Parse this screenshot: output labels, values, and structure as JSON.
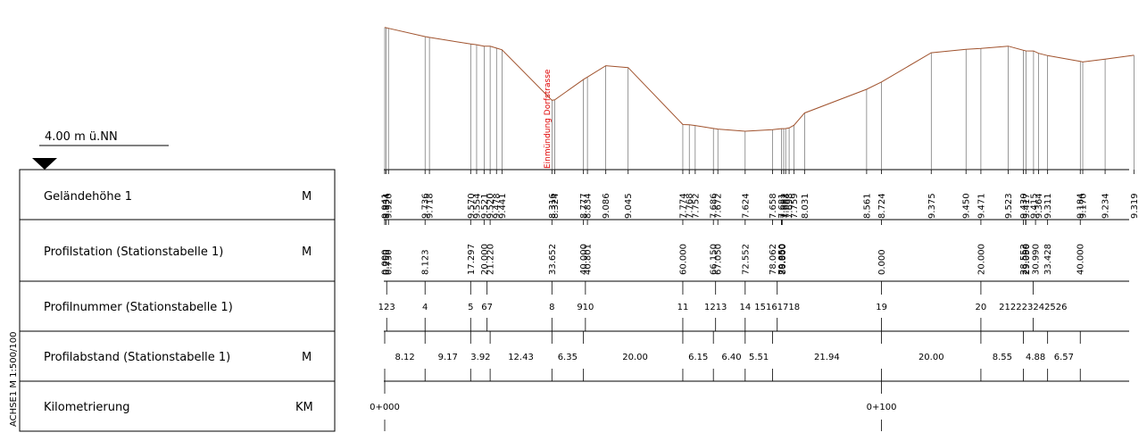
{
  "datum": "4.00 m ü.NN",
  "side_label": "ACHSE1  M 1:500/100",
  "rows": [
    {
      "label": "Geländehöhe 1",
      "unit": "M"
    },
    {
      "label": "Profilstation (Stationstabelle 1)",
      "unit": "M"
    },
    {
      "label": "Profilnummer (Stationstabelle 1)",
      "unit": ""
    },
    {
      "label": "Profilabstand (Stationstabelle 1)",
      "unit": "M"
    },
    {
      "label": "Kilometrierung",
      "unit": "KM"
    }
  ],
  "annotation": "Einmündung Dorfstrasse",
  "terrain": [
    {
      "x": 0.0,
      "h": 9.941
    },
    {
      "x": 0.25,
      "h": 9.934
    },
    {
      "x": 0.75,
      "h": 9.92
    },
    {
      "x": 8.123,
      "h": 9.736
    },
    {
      "x": 9.0,
      "h": 9.718
    },
    {
      "x": 17.297,
      "h": 9.57
    },
    {
      "x": 18.5,
      "h": 9.554
    },
    {
      "x": 20.0,
      "h": 9.521
    },
    {
      "x": 21.22,
      "h": 9.52
    },
    {
      "x": 22.5,
      "h": 9.478
    },
    {
      "x": 23.6,
      "h": 9.441
    },
    {
      "x": 33.652,
      "h": 8.316
    },
    {
      "x": 34.2,
      "h": 8.324
    },
    {
      "x": 40.0,
      "h": 8.777
    },
    {
      "x": 40.801,
      "h": 8.834
    },
    {
      "x": 44.5,
      "h": 9.086
    },
    {
      "x": 49.0,
      "h": 9.045
    },
    {
      "x": 60.0,
      "h": 7.774
    },
    {
      "x": 61.3,
      "h": 7.768
    },
    {
      "x": 62.5,
      "h": 7.752
    },
    {
      "x": 66.15,
      "h": 7.686
    },
    {
      "x": 67.05,
      "h": 7.672
    },
    {
      "x": 72.552,
      "h": 7.624
    },
    {
      "x": 78.062,
      "h": 7.658
    },
    {
      "x": 79.85,
      "h": 7.681
    },
    {
      "x": 80.3,
      "h": 7.682
    },
    {
      "x": 80.7,
      "h": 7.683
    },
    {
      "x": 81.4,
      "h": 7.698
    },
    {
      "x": 82.4,
      "h": 7.759
    },
    {
      "x": 84.5,
      "h": 8.031
    },
    {
      "x": 97.0,
      "h": 8.561
    },
    {
      "x": 100.0,
      "h": 8.724
    },
    {
      "x": 110.0,
      "h": 9.375
    },
    {
      "x": 117.0,
      "h": 9.45
    },
    {
      "x": 120.0,
      "h": 9.471
    },
    {
      "x": 125.5,
      "h": 9.523
    },
    {
      "x": 128.552,
      "h": 9.43
    },
    {
      "x": 129.05,
      "h": 9.417
    },
    {
      "x": 130.6,
      "h": 9.415
    },
    {
      "x": 131.6,
      "h": 9.364
    },
    {
      "x": 133.428,
      "h": 9.311
    },
    {
      "x": 140.0,
      "h": 9.184
    },
    {
      "x": 140.5,
      "h": 9.17
    },
    {
      "x": 145.0,
      "h": 9.234
    },
    {
      "x": 150.8,
      "h": 9.319
    }
  ],
  "stations": [
    {
      "x": 0.0,
      "label": "0.000"
    },
    {
      "x": 0.25,
      "label": "0.250"
    },
    {
      "x": 0.75,
      "label": "0.750"
    },
    {
      "x": 8.123,
      "label": "8.123"
    },
    {
      "x": 17.297,
      "label": "17.297"
    },
    {
      "x": 20.0,
      "label": "20.000"
    },
    {
      "x": 21.22,
      "label": "21.220"
    },
    {
      "x": 33.652,
      "label": "33.652"
    },
    {
      "x": 40.0,
      "label": "40.000"
    },
    {
      "x": 40.801,
      "label": "40.801"
    },
    {
      "x": 60.0,
      "label": "60.000"
    },
    {
      "x": 66.15,
      "label": "66.150"
    },
    {
      "x": 67.05,
      "label": "67.050"
    },
    {
      "x": 72.552,
      "label": "72.552"
    },
    {
      "x": 78.062,
      "label": "78.062"
    },
    {
      "x": 79.85,
      "label": "79.850"
    },
    {
      "x": 79.95,
      "label": "79.950"
    },
    {
      "x": 80.0,
      "label": "80.000"
    },
    {
      "x": 100.0,
      "label": "0.000"
    },
    {
      "x": 120.0,
      "label": "20.000"
    },
    {
      "x": 128.552,
      "label": "28.552"
    },
    {
      "x": 129.0,
      "label": "29.000"
    },
    {
      "x": 129.05,
      "label": "29.050"
    },
    {
      "x": 130.99,
      "label": "30.990"
    },
    {
      "x": 133.428,
      "label": "33.428"
    },
    {
      "x": 140.0,
      "label": "40.000"
    }
  ],
  "profile_numbers": [
    {
      "x": 0.4,
      "label": "123"
    },
    {
      "x": 8.123,
      "label": "4"
    },
    {
      "x": 17.297,
      "label": "5"
    },
    {
      "x": 20.6,
      "label": "67"
    },
    {
      "x": 33.652,
      "label": "8"
    },
    {
      "x": 40.4,
      "label": "910"
    },
    {
      "x": 60.0,
      "label": "11"
    },
    {
      "x": 66.6,
      "label": "1213"
    },
    {
      "x": 72.552,
      "label": "14"
    },
    {
      "x": 79.0,
      "label": "15161718"
    },
    {
      "x": 100.0,
      "label": "19"
    },
    {
      "x": 120.0,
      "label": "20"
    },
    {
      "x": 130.5,
      "label": "212223242526"
    }
  ],
  "distances": [
    {
      "x": 4.06,
      "label": "8.12"
    },
    {
      "x": 12.71,
      "label": "9.17"
    },
    {
      "x": 19.3,
      "label": "3.92"
    },
    {
      "x": 27.4,
      "label": "12.43"
    },
    {
      "x": 36.8,
      "label": "6.35"
    },
    {
      "x": 50.4,
      "label": "20.00"
    },
    {
      "x": 63.1,
      "label": "6.15"
    },
    {
      "x": 69.8,
      "label": "6.40"
    },
    {
      "x": 75.3,
      "label": "5.51"
    },
    {
      "x": 89.0,
      "label": "21.94"
    },
    {
      "x": 110.0,
      "label": "20.00"
    },
    {
      "x": 124.3,
      "label": "8.55"
    },
    {
      "x": 131.0,
      "label": "4.88"
    },
    {
      "x": 136.7,
      "label": "6.57"
    }
  ],
  "distance_ticks": [
    0,
    8.123,
    17.297,
    21.22,
    33.652,
    40.0,
    60.0,
    66.15,
    72.552,
    78.062,
    100.0,
    120.0,
    128.552,
    133.428,
    140.0
  ],
  "km_marks": [
    {
      "x": 0,
      "label": "0+000"
    },
    {
      "x": 100,
      "label": "0+100"
    }
  ],
  "annotation_x": 33.8,
  "colors": {
    "terrain": "#a0522d",
    "annotation": "#e00000",
    "ink": "#000000",
    "grid": "#555555"
  }
}
